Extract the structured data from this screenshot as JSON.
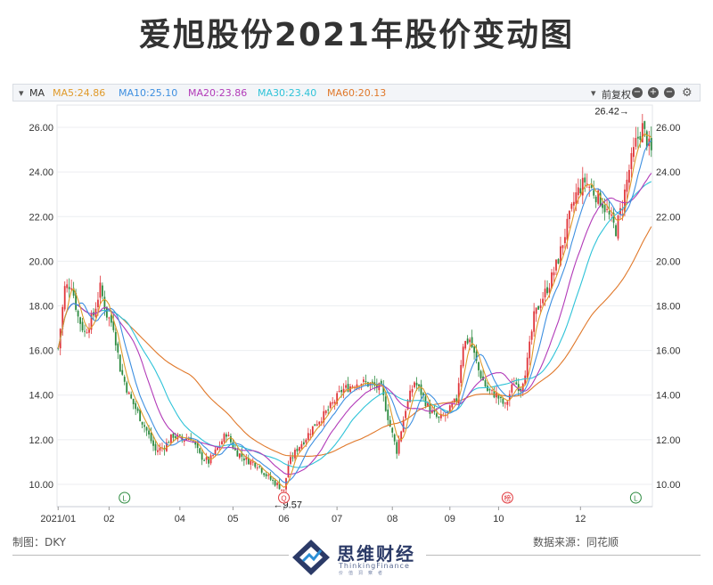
{
  "title": "爱旭股份2021年股价变动图",
  "toolbar": {
    "ma_label": "MA",
    "ma5": "MA5:24.86",
    "ma10": "MA10:25.10",
    "ma20": "MA20:23.86",
    "ma30": "MA30:23.40",
    "ma60": "MA60:20.13",
    "adjust": "前复权",
    "controls": [
      "minus-icon",
      "plus-icon",
      "settings-gear-icon"
    ]
  },
  "colors": {
    "up": "#e0353a",
    "down": "#2c8a3f",
    "ma5": "#e09a2a",
    "ma10": "#3d8fe0",
    "ma20": "#b23ab8",
    "ma30": "#2ec3d8",
    "ma60": "#e0782a"
  },
  "chart_data": {
    "type": "candlestick",
    "ylim": [
      9.0,
      27.0
    ],
    "y_ticks": [
      "10.00",
      "12.00",
      "14.00",
      "16.00",
      "18.00",
      "20.00",
      "22.00",
      "24.00",
      "26.00"
    ],
    "x_ticks": [
      "2021/01",
      "02",
      "04",
      "05",
      "06",
      "07",
      "08",
      "09",
      "10",
      "12"
    ],
    "x_tick_days": [
      0,
      23,
      55,
      79,
      102,
      126,
      151,
      177,
      199,
      236
    ],
    "days": 268,
    "annotations": {
      "high": {
        "label": "26.42→",
        "day": 262,
        "value": 26.42
      },
      "low": {
        "label": "←9.57",
        "day": 102,
        "value": 9.57
      }
    },
    "markers": [
      {
        "label": "L",
        "day": 30,
        "color": "#2c8a3f"
      },
      {
        "label": "Q",
        "day": 102,
        "color": "#e0353a"
      },
      {
        "label": "榜",
        "day": 203,
        "color": "#e0353a"
      },
      {
        "label": "L",
        "day": 261,
        "color": "#2c8a3f"
      }
    ],
    "price_path": [
      [
        0,
        16.1
      ],
      [
        3,
        18.8
      ],
      [
        6,
        19.0
      ],
      [
        9,
        17.5
      ],
      [
        12,
        16.8
      ],
      [
        16,
        17.6
      ],
      [
        19,
        18.8
      ],
      [
        22,
        17.6
      ],
      [
        25,
        17.1
      ],
      [
        28,
        15.2
      ],
      [
        32,
        14.0
      ],
      [
        36,
        13.2
      ],
      [
        40,
        12.4
      ],
      [
        44,
        11.5
      ],
      [
        48,
        11.7
      ],
      [
        52,
        12.2
      ],
      [
        56,
        12.0
      ],
      [
        60,
        12.1
      ],
      [
        64,
        11.3
      ],
      [
        68,
        11.0
      ],
      [
        72,
        11.6
      ],
      [
        76,
        12.3
      ],
      [
        80,
        11.5
      ],
      [
        85,
        11.1
      ],
      [
        90,
        10.9
      ],
      [
        95,
        10.3
      ],
      [
        100,
        9.9
      ],
      [
        102,
        9.7
      ],
      [
        104,
        10.9
      ],
      [
        108,
        11.6
      ],
      [
        112,
        12.1
      ],
      [
        116,
        12.7
      ],
      [
        120,
        13.1
      ],
      [
        124,
        13.6
      ],
      [
        128,
        14.2
      ],
      [
        132,
        14.4
      ],
      [
        136,
        14.6
      ],
      [
        140,
        14.5
      ],
      [
        146,
        14.3
      ],
      [
        150,
        12.6
      ],
      [
        153,
        11.5
      ],
      [
        157,
        13.4
      ],
      [
        161,
        14.6
      ],
      [
        164,
        14.1
      ],
      [
        168,
        13.3
      ],
      [
        172,
        12.9
      ],
      [
        176,
        13.2
      ],
      [
        180,
        13.8
      ],
      [
        183,
        16.3
      ],
      [
        186,
        16.5
      ],
      [
        190,
        15.1
      ],
      [
        194,
        14.2
      ],
      [
        198,
        14.0
      ],
      [
        202,
        13.5
      ],
      [
        206,
        14.6
      ],
      [
        209,
        14.3
      ],
      [
        212,
        15.5
      ],
      [
        215,
        17.5
      ],
      [
        218,
        18.2
      ],
      [
        222,
        19.0
      ],
      [
        226,
        20.1
      ],
      [
        230,
        21.6
      ],
      [
        234,
        23.0
      ],
      [
        238,
        23.6
      ],
      [
        242,
        23.1
      ],
      [
        246,
        22.6
      ],
      [
        249,
        22.0
      ],
      [
        252,
        21.4
      ],
      [
        255,
        22.6
      ],
      [
        258,
        24.1
      ],
      [
        261,
        25.3
      ],
      [
        264,
        26.0
      ],
      [
        266,
        25.4
      ],
      [
        268,
        24.86
      ]
    ]
  },
  "footer": {
    "maker": "制图：DKY",
    "source": "数据来源：同花顺",
    "logo_cn": "思维财经",
    "logo_en": "ThinkingFinance",
    "logo_sub": "价值洞察者"
  }
}
